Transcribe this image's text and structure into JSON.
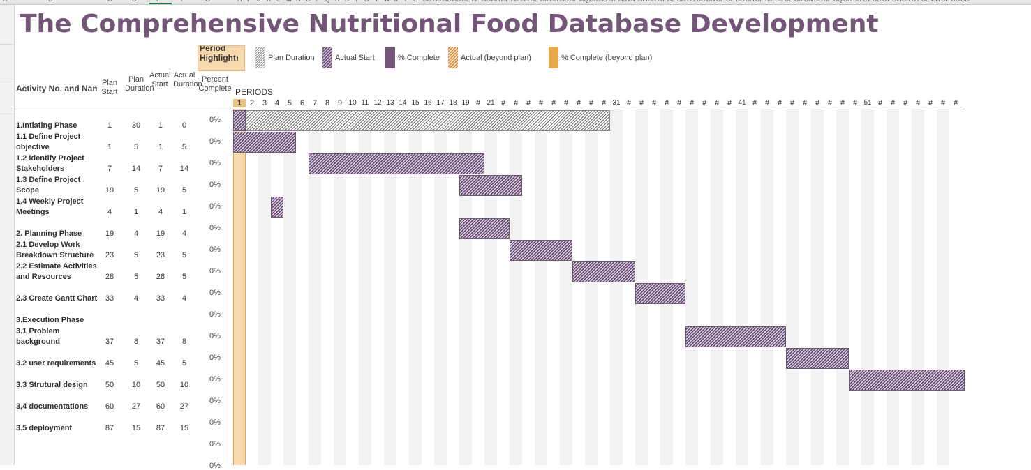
{
  "sheet": {
    "column_headers": [
      "A",
      "B",
      "C",
      "D",
      "E",
      "F",
      "G",
      "H",
      "I",
      "J",
      "K",
      "L",
      "M",
      "N",
      "O",
      "P",
      "Q",
      "R",
      "S",
      "T",
      "U",
      "V",
      "W",
      "X",
      "Y",
      "Z",
      "AA",
      "AB",
      "AC",
      "AD",
      "AE",
      "AF",
      "AG",
      "AH",
      "AI",
      "AJ",
      "AK",
      "AL",
      "AM",
      "AN",
      "AO",
      "AP",
      "AQ",
      "AR",
      "AS",
      "AT",
      "AU",
      "AV",
      "AW",
      "AX",
      "AY",
      "AZ",
      "BA",
      "BB",
      "BC",
      "BD",
      "BE",
      "BF",
      "BG",
      "BH",
      "BI",
      "BJ",
      "BK",
      "BL",
      "BM",
      "BN",
      "BO",
      "BP",
      "BQ",
      "BR",
      "BS",
      "BT",
      "BU",
      "BV",
      "BW",
      "BX",
      "BY",
      "BZ",
      "CA",
      "CB",
      "CC",
      "CD"
    ]
  },
  "title": "The Comprehensive Nutritional Food Database Development",
  "period_highlight": {
    "label": "Period Highlight",
    "value": "1",
    "color": "#F8D8AD"
  },
  "legend": [
    {
      "key": "plan",
      "label": "Plan Duration",
      "style": "hatch-white"
    },
    {
      "key": "actual",
      "label": "Actual Start",
      "style": "hatch-purple"
    },
    {
      "key": "complete",
      "label": "% Complete",
      "color": "#745678"
    },
    {
      "key": "beyond",
      "label": "Actual (beyond plan)",
      "style": "hatch-orange"
    },
    {
      "key": "complete_beyond",
      "label": "% Complete (beyond plan)",
      "color": "#E8A84E"
    }
  ],
  "headers": {
    "activity": "Activity No. and Name",
    "plan_start": "Plan Start",
    "plan_duration": "Plan Duration",
    "actual_start": "Actual Start",
    "actual_duration": "Actual Duration",
    "percent": "Percent Complete",
    "periods": "PERIODS"
  },
  "period_numbers": [
    "1",
    "2",
    "3",
    "4",
    "5",
    "6",
    "7",
    "8",
    "9",
    "10",
    "11",
    "12",
    "13",
    "14",
    "15",
    "16",
    "17",
    "18",
    "19",
    "#",
    "21",
    "#",
    "#",
    "#",
    "#",
    "#",
    "#",
    "#",
    "#",
    "#",
    "31",
    "#",
    "#",
    "#",
    "#",
    "#",
    "#",
    "#",
    "#",
    "#",
    "41",
    "#",
    "#",
    "#",
    "#",
    "#",
    "#",
    "#",
    "#",
    "#",
    "51",
    "#",
    "#",
    "#",
    "#",
    "#",
    "#",
    "#",
    "#",
    "#"
  ],
  "activities": [
    {
      "line1": "",
      "line2": "1.Intiating Phase",
      "plan_start": "1",
      "plan_duration": "30",
      "actual_start": "1",
      "actual_duration": "0",
      "percent": "0%"
    },
    {
      "line1": "1.1 Define Project",
      "line2": "objective",
      "plan_start": "1",
      "plan_duration": "5",
      "actual_start": "1",
      "actual_duration": "5",
      "percent": "0%"
    },
    {
      "line1": "1.2 Identify Project",
      "line2": "Stakeholders",
      "plan_start": "7",
      "plan_duration": "14",
      "actual_start": "7",
      "actual_duration": "14",
      "percent": "0%"
    },
    {
      "line1": "1.3 Define Project",
      "line2": "Scope",
      "plan_start": "19",
      "plan_duration": "5",
      "actual_start": "19",
      "actual_duration": "5",
      "percent": "0%"
    },
    {
      "line1": "1.4 Weekly Project",
      "line2": "Meetings",
      "plan_start": "4",
      "plan_duration": "1",
      "actual_start": "4",
      "actual_duration": "1",
      "percent": "0%"
    },
    {
      "line1": "",
      "line2": "2. Planning Phase",
      "plan_start": "19",
      "plan_duration": "4",
      "actual_start": "19",
      "actual_duration": "4",
      "percent": "0%"
    },
    {
      "line1": "2.1 Develop Work",
      "line2": "Breakdown Structure",
      "plan_start": "23",
      "plan_duration": "5",
      "actual_start": "23",
      "actual_duration": "5",
      "percent": "0%"
    },
    {
      "line1": "2.2 Estimate Activities",
      "line2": "and Resources",
      "plan_start": "28",
      "plan_duration": "5",
      "actual_start": "28",
      "actual_duration": "5",
      "percent": "0%"
    },
    {
      "line1": "",
      "line2": "2.3 Create Gantt Chart",
      "plan_start": "33",
      "plan_duration": "4",
      "actual_start": "33",
      "actual_duration": "4",
      "percent": "0%"
    },
    {
      "line1": "",
      "line2": "3.Execution Phase",
      "plan_start": "",
      "plan_duration": "",
      "actual_start": "",
      "actual_duration": "",
      "percent": "0%"
    },
    {
      "line1": "3.1 Problem",
      "line2": "background",
      "plan_start": "37",
      "plan_duration": "8",
      "actual_start": "37",
      "actual_duration": "8",
      "percent": "0%"
    },
    {
      "line1": "",
      "line2": "3.2 user requirements",
      "plan_start": "45",
      "plan_duration": "5",
      "actual_start": "45",
      "actual_duration": "5",
      "percent": "0%"
    },
    {
      "line1": "",
      "line2": "3.3 Strutural design",
      "plan_start": "50",
      "plan_duration": "10",
      "actual_start": "50",
      "actual_duration": "10",
      "percent": "0%"
    },
    {
      "line1": "",
      "line2": "3,4 documentations",
      "plan_start": "60",
      "plan_duration": "27",
      "actual_start": "60",
      "actual_duration": "27",
      "percent": "0%"
    },
    {
      "line1": "",
      "line2": "3.5 deployment",
      "plan_start": "87",
      "plan_duration": "15",
      "actual_start": "87",
      "actual_duration": "15",
      "percent": "0%"
    },
    {
      "line1": "",
      "line2": "",
      "plan_start": "",
      "plan_duration": "",
      "actual_start": "",
      "actual_duration": "",
      "percent": "0%"
    },
    {
      "line1": "",
      "line2": "",
      "plan_start": "",
      "plan_duration": "",
      "actual_start": "",
      "actual_duration": "",
      "percent": "0%"
    }
  ]
}
